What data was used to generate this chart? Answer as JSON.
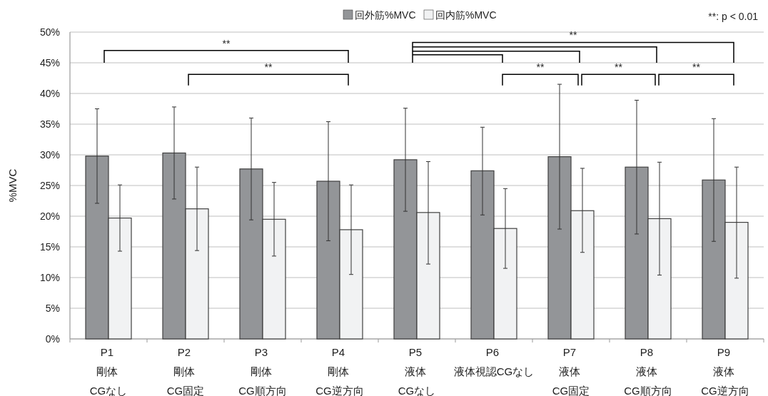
{
  "chart_data": {
    "type": "bar",
    "ylabel": "%MVC",
    "categories": [
      "P1\n剛体\nCGなし",
      "P2\n剛体\nCG固定",
      "P3\n剛体\nCG順方向",
      "P4\n剛体\nCG逆方向",
      "P5\n液体\nCGなし",
      "P6\n液体視認CGなし",
      "P7\n液体\nCG固定",
      "P8\n液体\nCG順方向",
      "P9\n液体\nCG逆方向"
    ],
    "series": [
      {
        "name": "回外筋%MVC",
        "color": "#939598",
        "values": [
          29.8,
          30.3,
          27.7,
          25.7,
          29.2,
          27.4,
          29.7,
          28.0,
          25.9
        ],
        "errors": [
          [
            22.1,
            37.5
          ],
          [
            22.8,
            37.8
          ],
          [
            19.4,
            36.0
          ],
          [
            16.0,
            35.4
          ],
          [
            20.8,
            37.6
          ],
          [
            20.2,
            34.5
          ],
          [
            17.9,
            41.5
          ],
          [
            17.1,
            38.9
          ],
          [
            15.9,
            35.9
          ]
        ]
      },
      {
        "name": "回内筋%MVC",
        "color": "#f1f2f3",
        "values": [
          19.7,
          21.2,
          19.5,
          17.8,
          20.6,
          18.0,
          20.9,
          19.6,
          19.0
        ],
        "errors": [
          [
            14.3,
            25.1
          ],
          [
            14.4,
            28.0
          ],
          [
            13.5,
            25.5
          ],
          [
            10.5,
            25.1
          ],
          [
            12.2,
            28.9
          ],
          [
            11.5,
            24.5
          ],
          [
            14.1,
            27.8
          ],
          [
            10.4,
            28.8
          ],
          [
            9.9,
            28.0
          ]
        ]
      }
    ],
    "ylim": [
      0,
      50
    ],
    "yticks": [
      {
        "value": 0,
        "label": "0%"
      },
      {
        "value": 5,
        "label": "5%"
      },
      {
        "value": 10,
        "label": "10%"
      },
      {
        "value": 15,
        "label": "15%"
      },
      {
        "value": 20,
        "label": "20%"
      },
      {
        "value": 25,
        "label": "25%"
      },
      {
        "value": 30,
        "label": "30%"
      },
      {
        "value": 35,
        "label": "35%"
      },
      {
        "value": 40,
        "label": "40%"
      },
      {
        "value": 45,
        "label": "45%"
      },
      {
        "value": 50,
        "label": "50%"
      }
    ],
    "grid": "y",
    "legend": "top",
    "annotations": [
      "**: p < 0.01",
      "**",
      "**",
      "**",
      "**",
      "**",
      "**"
    ]
  }
}
